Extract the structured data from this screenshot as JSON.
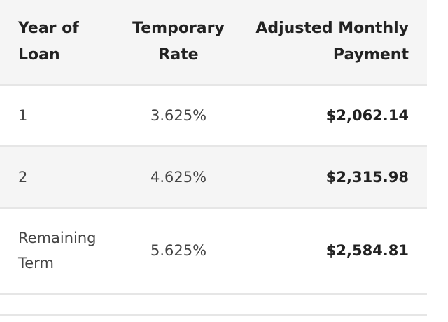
{
  "table": {
    "headers": {
      "year_line1": "Year of",
      "year_line2": "Loan",
      "rate_line1": "Temporary",
      "rate_line2": "Rate",
      "payment_line1": "Adjusted Monthly",
      "payment_line2": "Payment"
    },
    "rows": [
      {
        "year_line1": "1",
        "year_line2": "",
        "rate": "3.625%",
        "payment": "$2,062.14"
      },
      {
        "year_line1": "2",
        "year_line2": "",
        "rate": "4.625%",
        "payment": "$2,315.98"
      },
      {
        "year_line1": "Remaining",
        "year_line2": "Term",
        "rate": "5.625%",
        "payment": "$2,584.81"
      }
    ]
  }
}
